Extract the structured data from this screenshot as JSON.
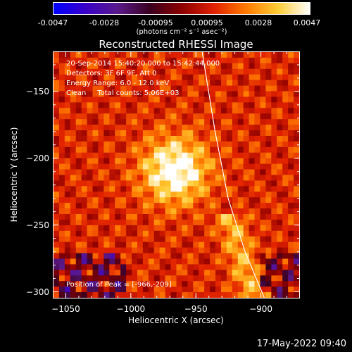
{
  "colorbar": {
    "ticks": [
      "-0.0047",
      "-0.0028",
      "-0.00095",
      "0.00095",
      "0.0028",
      "0.0047"
    ],
    "unit": "(photons cm⁻² s⁻¹ asec⁻²)",
    "colors": [
      "#0000ff",
      "#3a00c8",
      "#5a1a8c",
      "#3a0020",
      "#8c0000",
      "#e02000",
      "#ff7a00",
      "#ffcc33",
      "#ffffff"
    ]
  },
  "header": {
    "title": "Reconstructed RHESSI Image"
  },
  "info": {
    "line1": "20-Sep-2014 15:40:20.000 to 15:42:44.000",
    "line2": "Detectors: 3F 6F 9F, Att 0",
    "line3": "Energy Range: 6.0 - 12.0 keV",
    "line4": "Clean     Total counts: 5.06E+03",
    "peak": "Position of Peak = [-966,-209]"
  },
  "footer": {
    "date": "17-May-2022 09:40"
  },
  "chart_data": {
    "type": "heatmap",
    "title": "Reconstructed RHESSI Image",
    "xlabel": "Heliocentric X (arcsec)",
    "ylabel": "Heliocentric Y (arcsec)",
    "xlim": [
      -1060,
      -870
    ],
    "ylim": [
      -305,
      -120
    ],
    "x_ticks": [
      -1050,
      -1000,
      -950,
      -900
    ],
    "y_ticks": [
      -150,
      -200,
      -250,
      -300
    ],
    "x_tick_labels": [
      "−1050",
      "−1000",
      "−950",
      "−900"
    ],
    "y_tick_labels": [
      "−150",
      "−200",
      "−250",
      "−300"
    ],
    "colorbar_range": [
      -0.0047,
      0.0047
    ],
    "peak_position": [
      -966,
      -209
    ],
    "limb_curve": [
      [
        -945,
        -120
      ],
      [
        -935,
        -180
      ],
      [
        -925,
        -230
      ],
      [
        -912,
        -270
      ],
      [
        -897,
        -305
      ]
    ]
  }
}
